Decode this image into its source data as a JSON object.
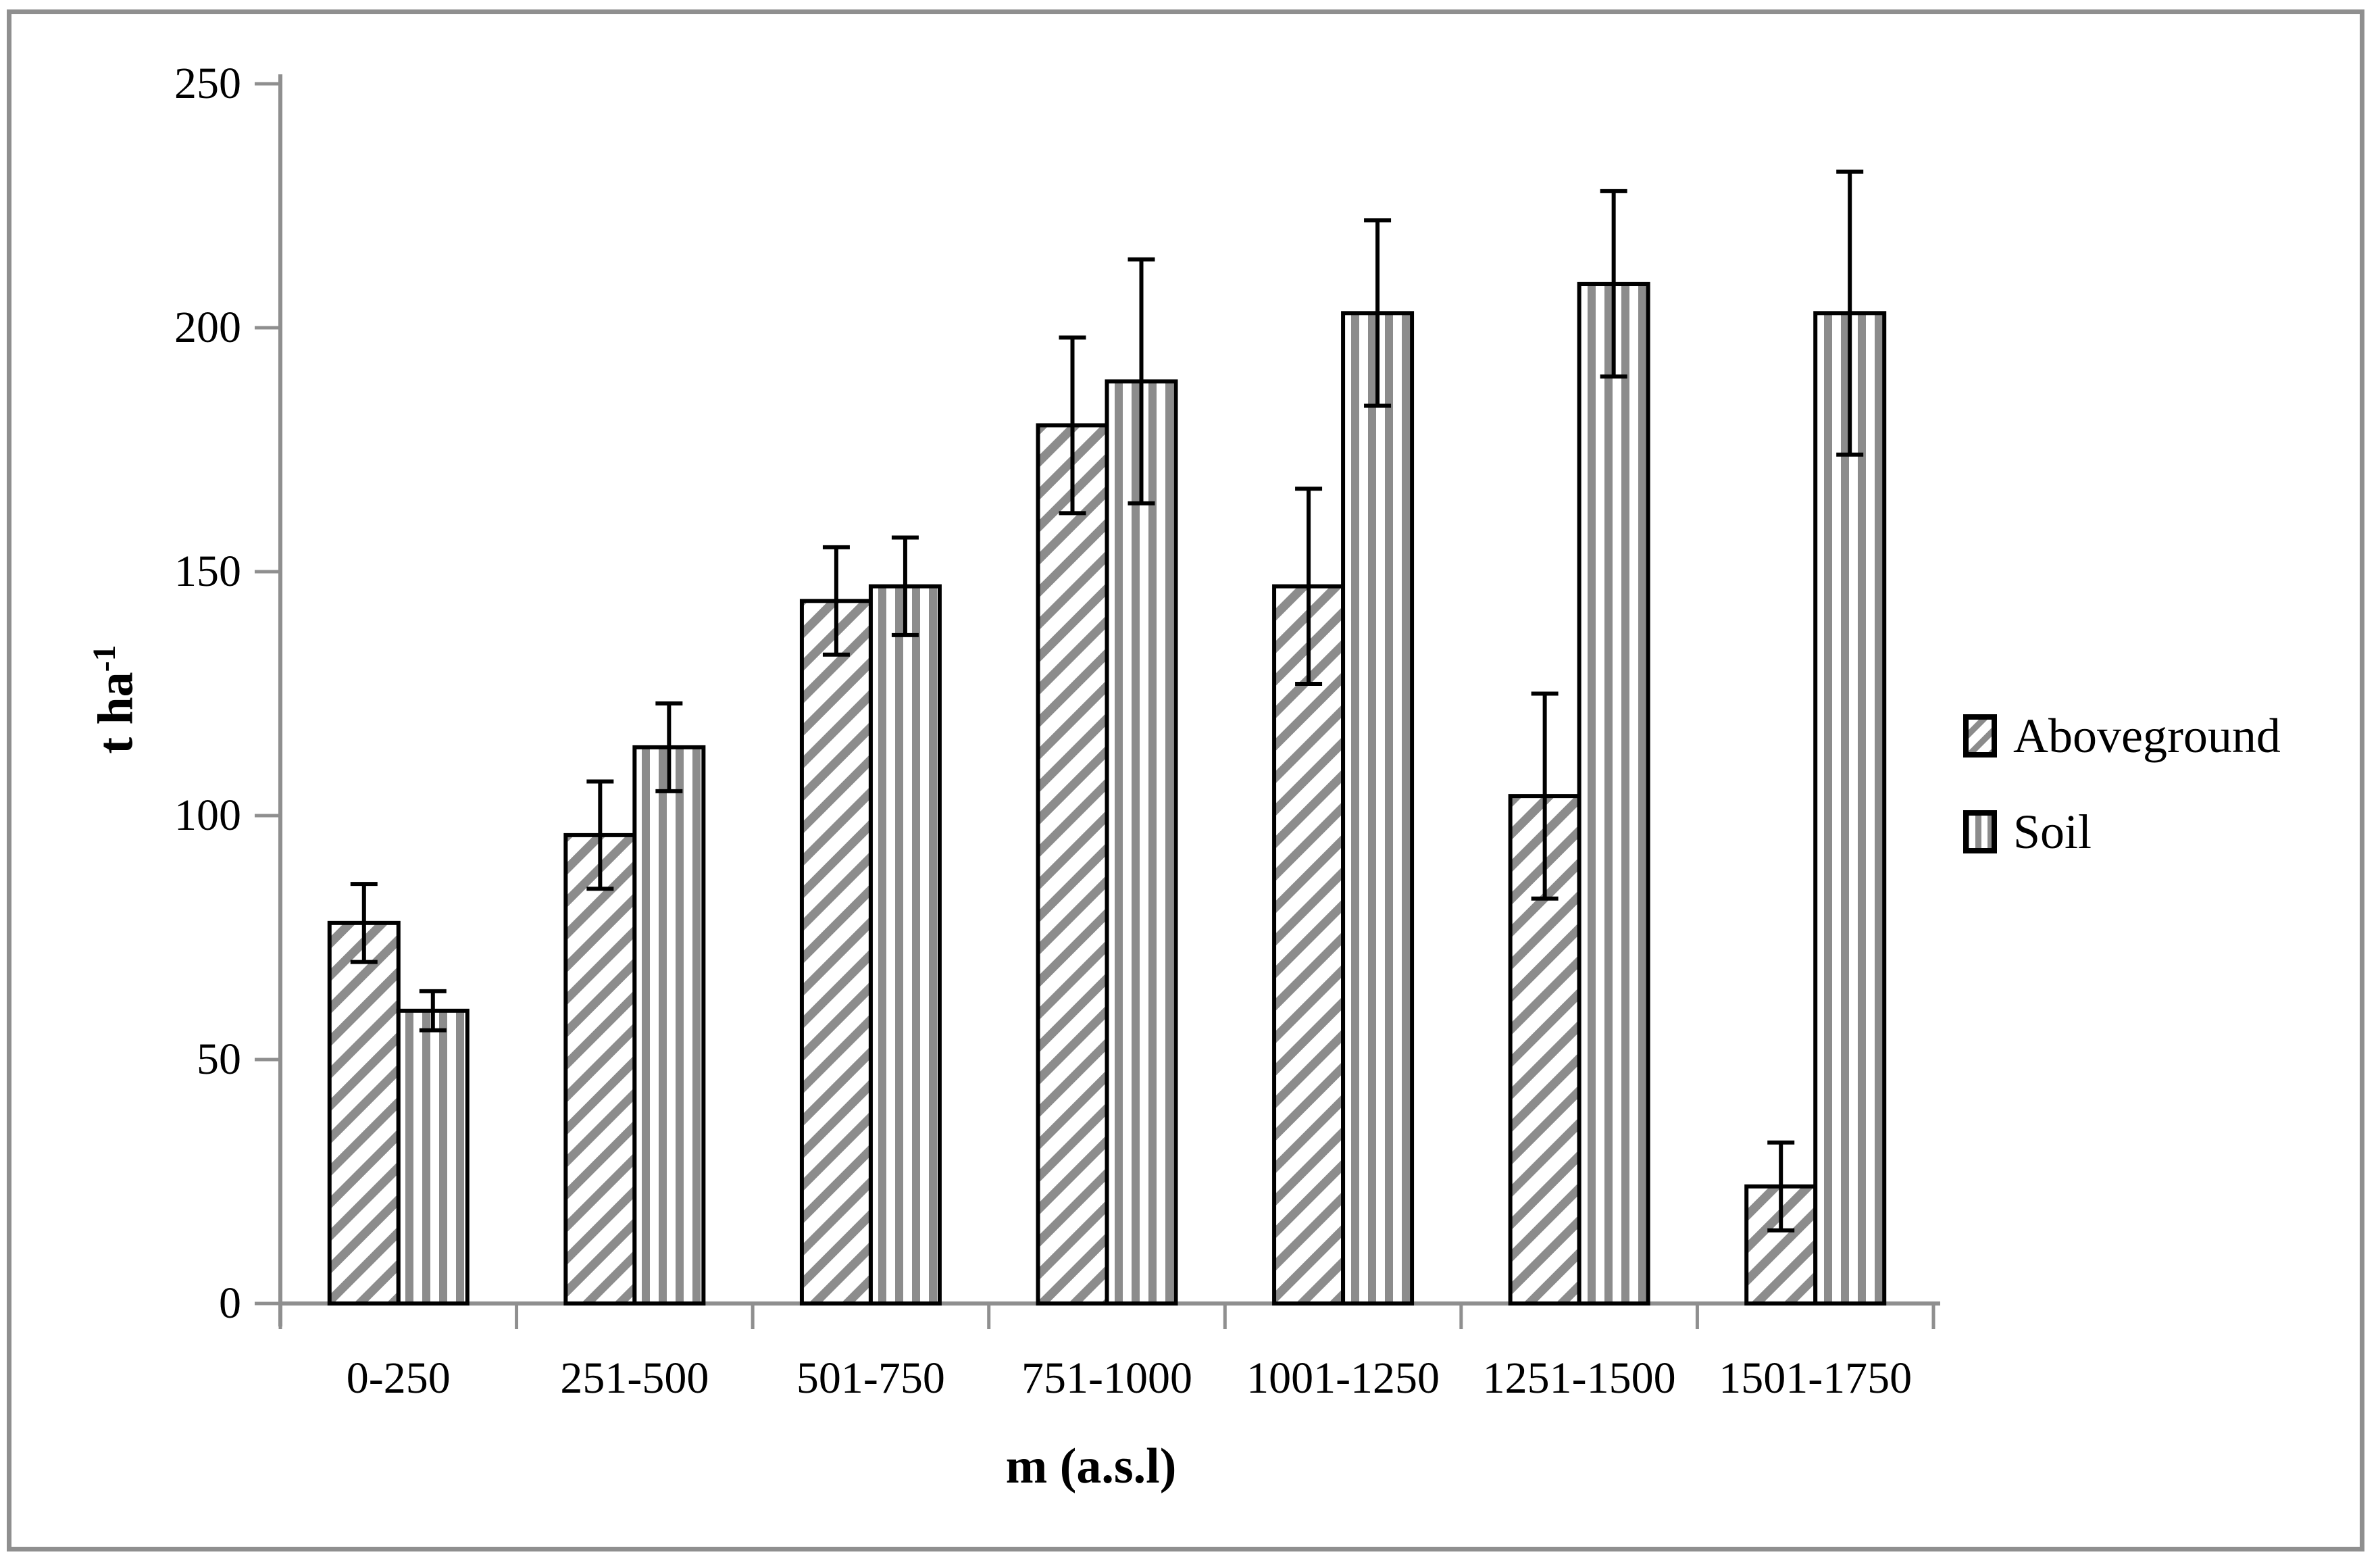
{
  "figure": {
    "background": "#ffffff",
    "border_color": "#8f8f8f"
  },
  "colors": {
    "hatch_gray": "#8c8c8c",
    "axis_gray": "#8f8f8f",
    "bar_border": "#000000",
    "text": "#000000"
  },
  "chart_data": {
    "type": "bar",
    "title": "",
    "xlabel": "m (a.s.l)",
    "ylabel": "t ha⁻¹",
    "ylabel_base": "t ha",
    "ylabel_sup": "-1",
    "ylim": [
      0,
      250
    ],
    "yticks": [
      0,
      50,
      100,
      150,
      200,
      250
    ],
    "grid": "off",
    "legend_position": "right-middle",
    "error_bars": true,
    "categories": [
      "0-250",
      "251-500",
      "501-750",
      "751-1000",
      "1001-1250",
      "1251-1500",
      "1501-1750"
    ],
    "series": [
      {
        "name": "Aboveground",
        "pattern": "diagonal-hatch",
        "values": [
          78,
          96,
          144,
          180,
          147,
          104,
          24
        ],
        "errors": [
          8,
          11,
          11,
          18,
          20,
          21,
          9
        ]
      },
      {
        "name": "Soil",
        "pattern": "vertical-stripes",
        "values": [
          60,
          114,
          147,
          189,
          203,
          209,
          203
        ],
        "errors": [
          4,
          9,
          10,
          25,
          19,
          19,
          29
        ]
      }
    ]
  }
}
